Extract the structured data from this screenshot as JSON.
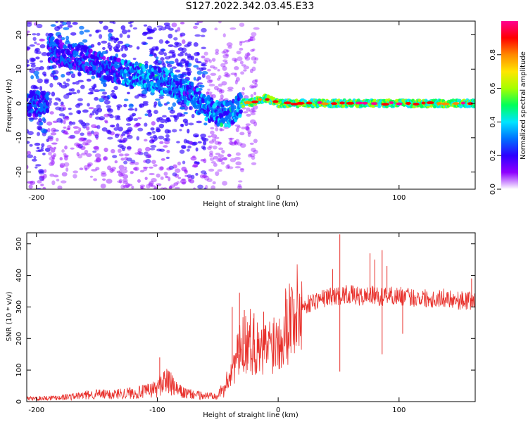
{
  "title": "S127.2022.342.03.45.E33",
  "chart_data": [
    {
      "type": "heatmap",
      "xlabel": "Height of straight line (km)",
      "ylabel": "Frequency (Hz)",
      "xlim": [
        -208,
        163
      ],
      "ylim": [
        -25,
        24
      ],
      "xticks": [
        -200,
        -100,
        0,
        100
      ],
      "yticks": [
        -20,
        -10,
        0,
        10,
        20
      ],
      "ridge": {
        "x": [
          -190,
          -175,
          -160,
          -145,
          -130,
          -115,
          -100,
          -90,
          -80,
          -70,
          -62,
          -55,
          -48,
          -40,
          -30,
          -20,
          -10,
          0,
          20,
          50,
          100,
          160
        ],
        "frequency": [
          16,
          14,
          13,
          11,
          9,
          8,
          7,
          6,
          4,
          2,
          -1,
          -2,
          -3,
          -3,
          0,
          0.5,
          1.5,
          0,
          0,
          0,
          0,
          0
        ]
      },
      "colorbar": {
        "label": "Normalized spectral amplitude",
        "range": [
          0.0,
          1.0
        ],
        "ticks": [
          "0.0",
          "0.2",
          "0.4",
          "0.6",
          "0.8"
        ],
        "colormap": [
          "#ffffff",
          "#8e00ff",
          "#2e00ff",
          "#0070ff",
          "#00e5ff",
          "#00ff5a",
          "#a6ff00",
          "#ffe600",
          "#ff8a00",
          "#ff0000",
          "#ff0090"
        ]
      }
    },
    {
      "type": "line",
      "xlabel": "Height of straight line (km)",
      "ylabel": "SNR (10 * v/v)",
      "xlim": [
        -208,
        163
      ],
      "ylim": [
        0,
        535
      ],
      "xticks": [
        -200,
        -100,
        0,
        100
      ],
      "yticks": [
        0,
        100,
        200,
        300,
        400,
        500
      ],
      "color": "#e8302b",
      "x": [
        -208,
        -200,
        -190,
        -180,
        -170,
        -160,
        -150,
        -140,
        -130,
        -120,
        -110,
        -100,
        -95,
        -90,
        -85,
        -80,
        -75,
        -70,
        -65,
        -60,
        -55,
        -50,
        -45,
        -40,
        -35,
        -30,
        -25,
        -20,
        -15,
        -10,
        -5,
        0,
        5,
        10,
        15,
        20,
        25,
        30,
        35,
        40,
        45,
        50,
        55,
        60,
        65,
        70,
        75,
        80,
        85,
        90,
        95,
        100,
        110,
        120,
        130,
        140,
        150,
        160,
        163
      ],
      "y": [
        10,
        10,
        12,
        14,
        16,
        20,
        24,
        22,
        26,
        28,
        32,
        42,
        70,
        60,
        40,
        30,
        25,
        22,
        20,
        18,
        20,
        25,
        35,
        90,
        130,
        170,
        200,
        180,
        150,
        170,
        190,
        200,
        240,
        270,
        280,
        300,
        310,
        320,
        325,
        330,
        335,
        335,
        340,
        340,
        335,
        330,
        340,
        335,
        330,
        340,
        335,
        335,
        330,
        330,
        325,
        330,
        320,
        320,
        318
      ],
      "spikes": [
        {
          "x": -98,
          "y": 140
        },
        {
          "x": -38,
          "y": 300
        },
        {
          "x": -32,
          "y": 345
        },
        {
          "x": -28,
          "y": 290
        },
        {
          "x": -20,
          "y": 280
        },
        {
          "x": -12,
          "y": 285
        },
        {
          "x": 45,
          "y": 420
        },
        {
          "x": 51,
          "y": 530
        },
        {
          "x": 51,
          "y": 95
        },
        {
          "x": 76,
          "y": 470
        },
        {
          "x": 80,
          "y": 450
        },
        {
          "x": 86,
          "y": 480
        },
        {
          "x": 86,
          "y": 150
        },
        {
          "x": 90,
          "y": 430
        },
        {
          "x": 103,
          "y": 215
        },
        {
          "x": 160,
          "y": 390
        }
      ]
    }
  ]
}
